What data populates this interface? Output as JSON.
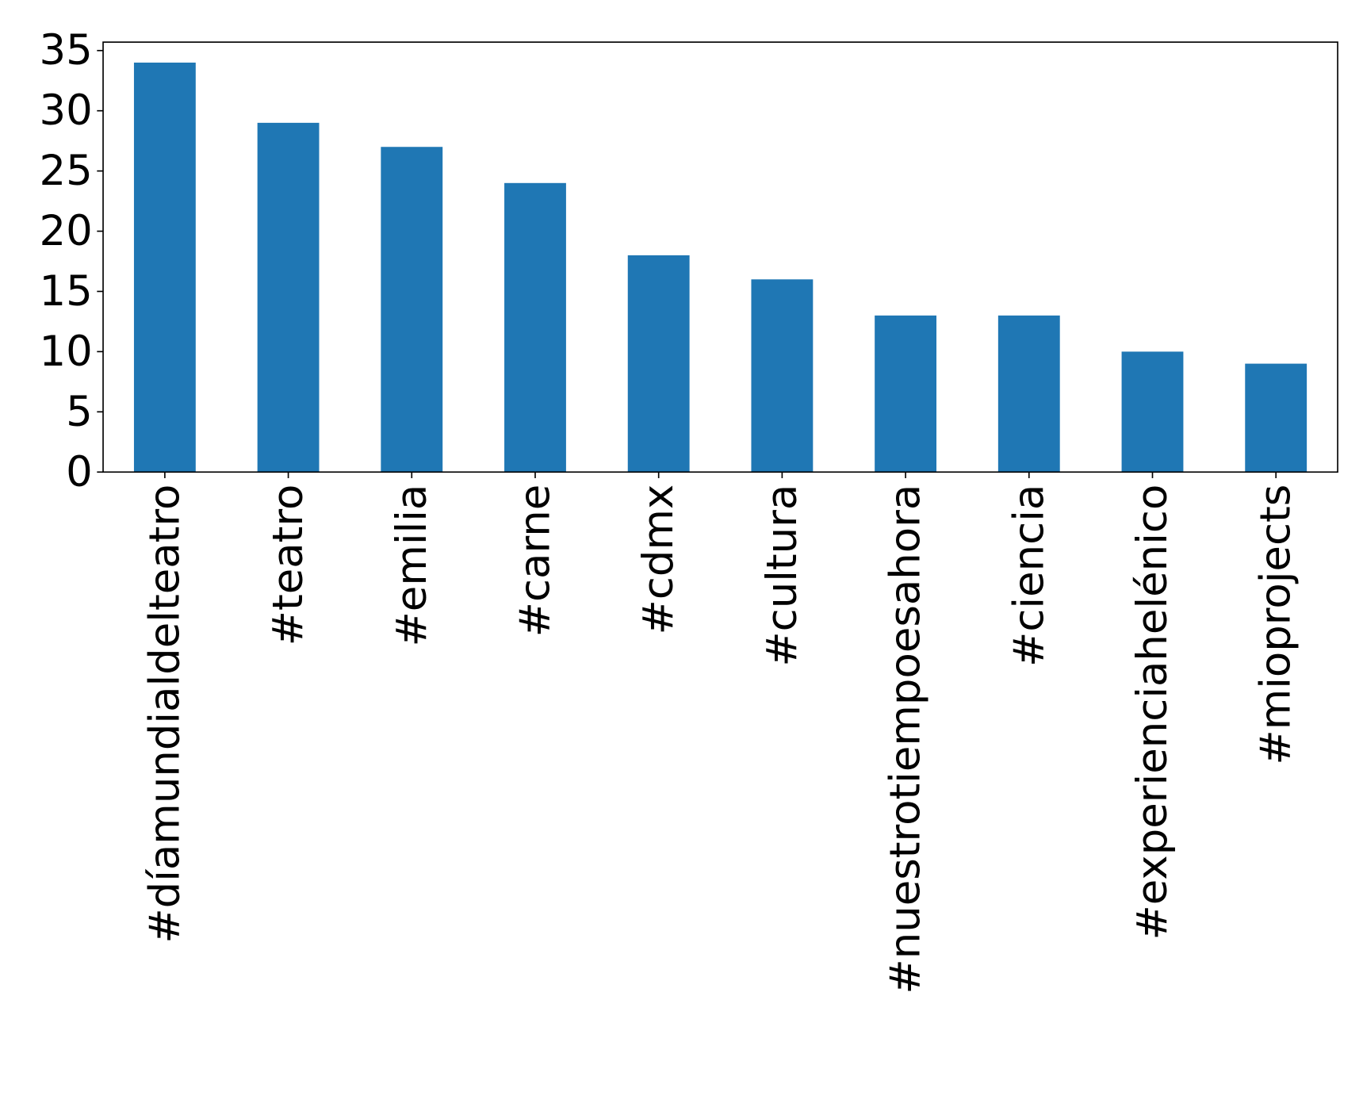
{
  "chart_data": {
    "type": "bar",
    "categories": [
      "#díamundialdelteatro",
      "#teatro",
      "#emilia",
      "#carne",
      "#cdmx",
      "#cultura",
      "#nuestrotiempoesahora",
      "#ciencia",
      "#experienciahelénico",
      "#mioprojects"
    ],
    "values": [
      34,
      29,
      27,
      24,
      18,
      16,
      13,
      13,
      10,
      9
    ],
    "color": "#1f77b4",
    "ylim": [
      0,
      35.7
    ],
    "yticks": [
      0,
      5,
      10,
      15,
      20,
      25,
      30,
      35
    ],
    "grid": false
  }
}
